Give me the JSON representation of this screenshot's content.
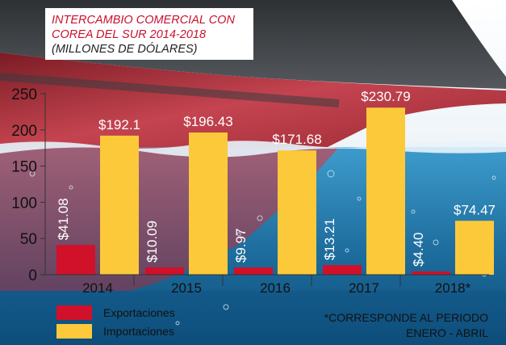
{
  "title": {
    "line1": "INTERCAMBIO COMERCIAL CON",
    "line2": "COREA DEL SUR 2014-2018",
    "line3": "(MILLONES DE DÓLARES)"
  },
  "chart_data": {
    "type": "bar",
    "categories": [
      "2014",
      "2015",
      "2016",
      "2017",
      "2018*"
    ],
    "series": [
      {
        "name": "Exportaciones",
        "values": [
          41.08,
          10.09,
          9.97,
          13.21,
          4.4
        ],
        "labels": [
          "$41.08",
          "$10.09",
          "$9.97",
          "$13.21",
          "$4.40"
        ],
        "color": "#d1102a"
      },
      {
        "name": "Importaciones",
        "values": [
          192.1,
          196.43,
          171.68,
          230.79,
          74.47
        ],
        "labels": [
          "$192.1",
          "$196.43",
          "$171.68",
          "$230.79",
          "$74.47"
        ],
        "color": "#fcc93a"
      }
    ],
    "ylim": [
      0,
      250
    ],
    "yticks": [
      "0",
      "50",
      "100",
      "150",
      "200",
      "250"
    ],
    "grid": false,
    "legend_position": "bottom-left"
  },
  "footnote": {
    "line1": "*CORRESPONDE AL PERIODO",
    "line2": "ENERO - ABRIL"
  }
}
